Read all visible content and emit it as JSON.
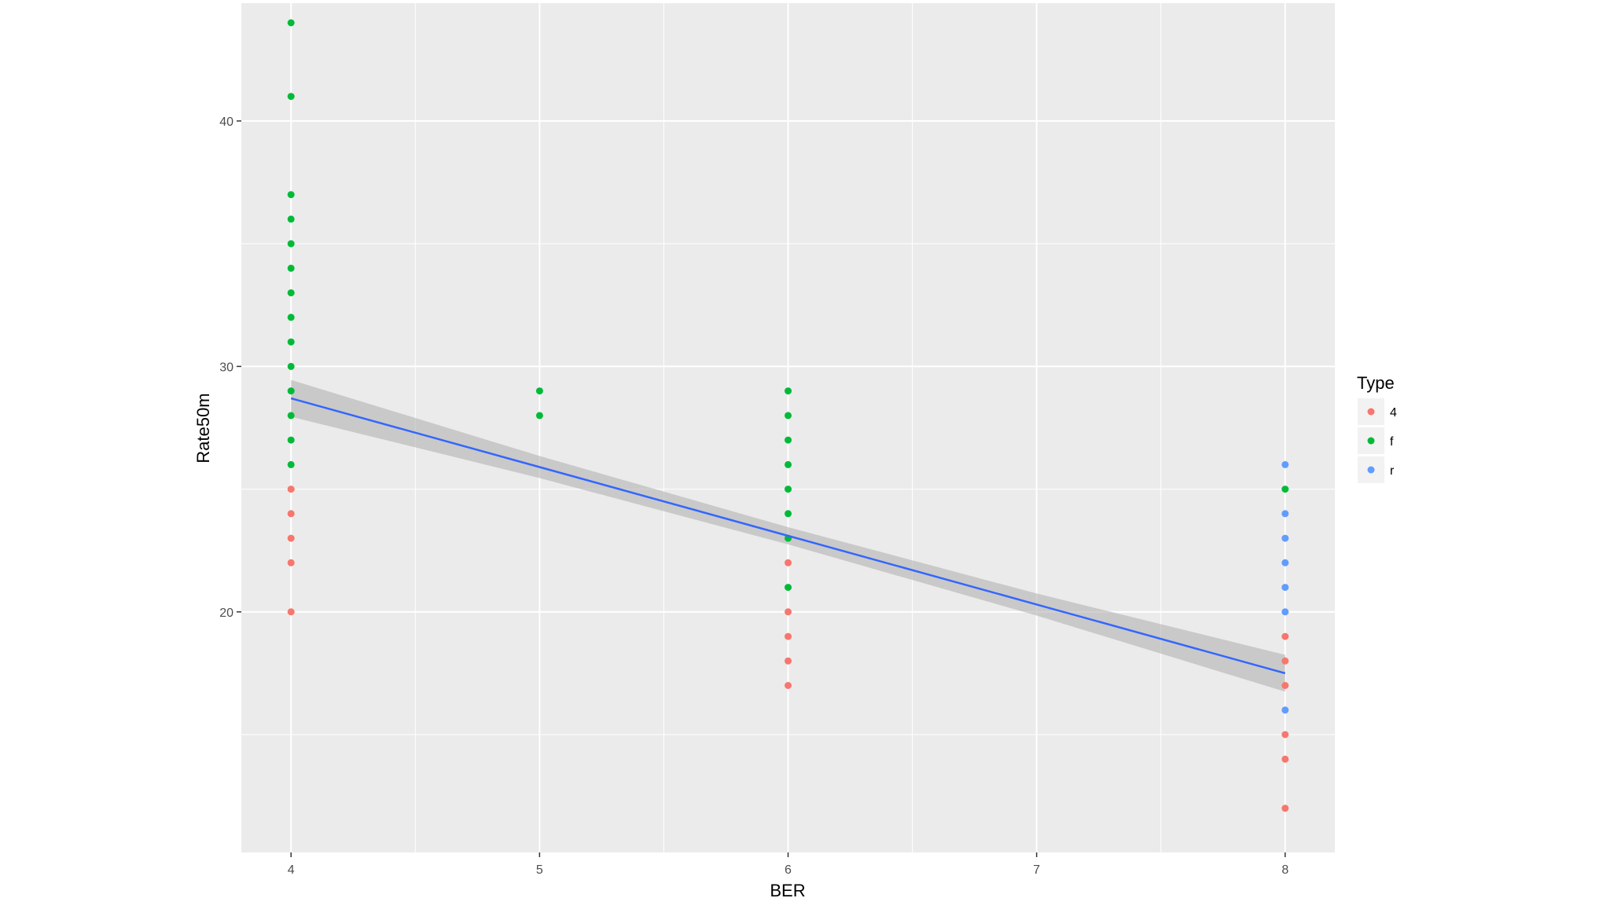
{
  "chart_data": {
    "type": "scatter",
    "xlabel": "BER",
    "ylabel": "Rate50m",
    "x_ticks": [
      4,
      5,
      6,
      7,
      8
    ],
    "y_ticks": [
      20,
      30,
      40
    ],
    "xlim": [
      3.8,
      8.2
    ],
    "ylim": [
      10.2,
      44.8
    ],
    "grid": true,
    "legend": {
      "title": "Type",
      "placement": "right",
      "entries": [
        {
          "name": "4",
          "color": "#F8766D"
        },
        {
          "name": "f",
          "color": "#00BA38"
        },
        {
          "name": "r",
          "color": "#619CFF"
        }
      ]
    },
    "series": [
      {
        "name": "4",
        "color": "#F8766D",
        "points": [
          [
            4,
            20
          ],
          [
            4,
            22
          ],
          [
            4,
            23
          ],
          [
            4,
            24
          ],
          [
            4,
            25
          ],
          [
            6,
            17
          ],
          [
            6,
            18
          ],
          [
            6,
            19
          ],
          [
            6,
            20
          ],
          [
            6,
            22
          ],
          [
            8,
            12
          ],
          [
            8,
            14
          ],
          [
            8,
            15
          ],
          [
            8,
            17
          ],
          [
            8,
            18
          ],
          [
            8,
            19
          ]
        ]
      },
      {
        "name": "f",
        "color": "#00BA38",
        "points": [
          [
            4,
            26
          ],
          [
            4,
            27
          ],
          [
            4,
            28
          ],
          [
            4,
            29
          ],
          [
            4,
            30
          ],
          [
            4,
            31
          ],
          [
            4,
            32
          ],
          [
            4,
            33
          ],
          [
            4,
            34
          ],
          [
            4,
            35
          ],
          [
            4,
            36
          ],
          [
            4,
            37
          ],
          [
            4,
            41
          ],
          [
            4,
            44
          ],
          [
            5,
            28
          ],
          [
            5,
            29
          ],
          [
            6,
            21
          ],
          [
            6,
            23
          ],
          [
            6,
            24
          ],
          [
            6,
            25
          ],
          [
            6,
            26
          ],
          [
            6,
            27
          ],
          [
            6,
            28
          ],
          [
            6,
            29
          ],
          [
            8,
            25
          ]
        ]
      },
      {
        "name": "r",
        "color": "#619CFF",
        "points": [
          [
            8,
            16
          ],
          [
            8,
            20
          ],
          [
            8,
            21
          ],
          [
            8,
            22
          ],
          [
            8,
            23
          ],
          [
            8,
            24
          ],
          [
            8,
            26
          ]
        ]
      }
    ],
    "trend": {
      "method": "linear",
      "color": "#3366FF",
      "band_color": "#b3b3b3",
      "points": [
        [
          4,
          28.7
        ],
        [
          5,
          25.9
        ],
        [
          6,
          23.1
        ],
        [
          7,
          20.3
        ],
        [
          8,
          17.5
        ]
      ],
      "ci_half_width": [
        0.75,
        0.45,
        0.35,
        0.45,
        0.75
      ]
    }
  }
}
